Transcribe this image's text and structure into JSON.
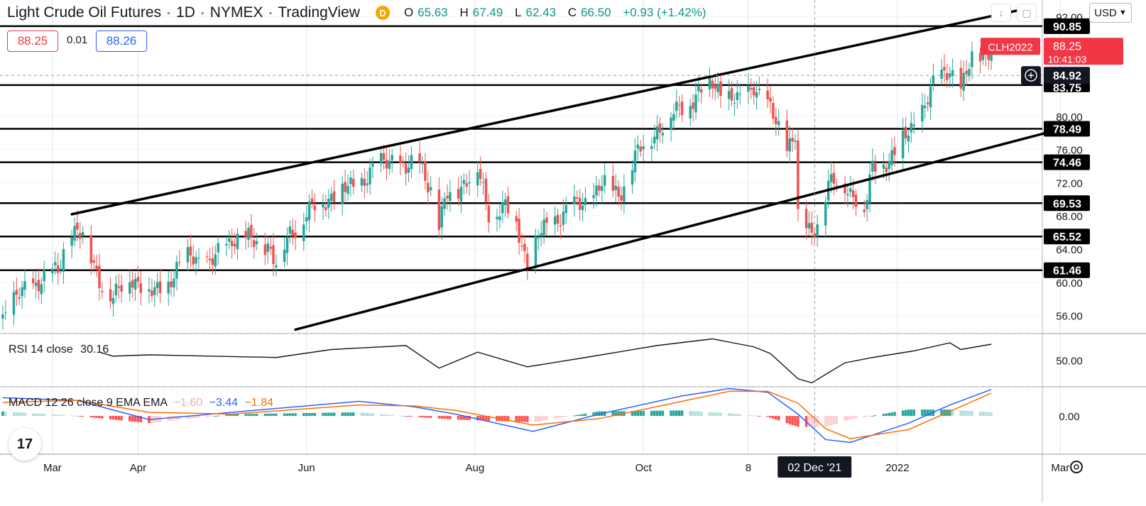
{
  "header": {
    "symbol_name": "Light Crude Oil Futures",
    "interval": "1D",
    "exchange": "NYMEX",
    "source": "TradingView",
    "badge": "D",
    "ohlc": {
      "o": "65.63",
      "h": "67.49",
      "l": "62.43",
      "c": "66.50",
      "change": "+0.93 (+1.42%)"
    },
    "o_key": "O",
    "h_key": "H",
    "l_key": "L",
    "c_key": "C"
  },
  "trade": {
    "sell": "88.25",
    "spread": "0.01",
    "buy": "88.26"
  },
  "toolbar": {
    "currency": "USD"
  },
  "rsi": {
    "label": "RSI 14 close",
    "value": "30.16",
    "tick": "50.00"
  },
  "macd": {
    "label": "MACD 12 26 close 9 EMA EMA",
    "hist": "−1.60",
    "macd": "−3.44",
    "signal": "−1.84",
    "tick": "0.00"
  },
  "price_tags": {
    "symbol": "CLH2022",
    "last": "88.25",
    "countdown": "10:41:03",
    "crosshair": "84.92"
  },
  "time_axis": {
    "crosshair_label": "02 Dec '21"
  },
  "colors": {
    "up": "#26a69a",
    "down": "#ef5350",
    "macd_line": "#2962ff",
    "signal_line": "#ff6d00",
    "last_price": "#f23645"
  },
  "chart_data": [
    {
      "type": "candlestick",
      "title": "Light Crude Oil Futures · 1D · NYMEX",
      "x_range": [
        "2021-02-10",
        "2022-03-31"
      ],
      "x_tick_labels": [
        "Mar",
        "Apr",
        "Jun",
        "Aug",
        "Oct",
        "8",
        "2022",
        "Mar"
      ],
      "y_range": [
        54,
        94
      ],
      "y_tick_labels": [
        "56.00",
        "60.00",
        "64.00",
        "68.00",
        "72.00",
        "76.00",
        "80.00",
        "92.00"
      ],
      "horizontal_levels": [
        90.85,
        83.75,
        78.49,
        74.46,
        69.53,
        65.52,
        61.46
      ],
      "level_labels": [
        "90.85",
        "78.49",
        "74.46",
        "69.53",
        "65.52",
        "61.46"
      ],
      "level_label_partial": "83.75",
      "channel_upper": [
        [
          "2021-03-08",
          68.2
        ],
        [
          "2022-02-20",
          93.2
        ]
      ],
      "channel_lower": [
        [
          "2021-05-28",
          54.3
        ],
        [
          "2022-02-25",
          78.1
        ]
      ],
      "close_anchors": [
        [
          "2021-02-11",
          56.0
        ],
        [
          "2021-02-20",
          59.5
        ],
        [
          "2021-03-03",
          61.3
        ],
        [
          "2021-03-07",
          66.5
        ],
        [
          "2021-03-12",
          65.5
        ],
        [
          "2021-03-18",
          60.5
        ],
        [
          "2021-03-23",
          57.8
        ],
        [
          "2021-03-29",
          61.0
        ],
        [
          "2021-04-05",
          58.5
        ],
        [
          "2021-04-12",
          60.0
        ],
        [
          "2021-04-20",
          63.5
        ],
        [
          "2021-04-27",
          62.0
        ],
        [
          "2021-05-05",
          65.5
        ],
        [
          "2021-05-12",
          65.0
        ],
        [
          "2021-05-18",
          64.5
        ],
        [
          "2021-05-21",
          62.0
        ],
        [
          "2021-05-26",
          66.0
        ],
        [
          "2021-06-02",
          68.5
        ],
        [
          "2021-06-10",
          70.5
        ],
        [
          "2021-06-18",
          71.5
        ],
        [
          "2021-06-25",
          73.5
        ],
        [
          "2021-07-02",
          75.0
        ],
        [
          "2021-07-07",
          73.5
        ],
        [
          "2021-07-12",
          74.5
        ],
        [
          "2021-07-16",
          71.5
        ],
        [
          "2021-07-19",
          66.5
        ],
        [
          "2021-07-22",
          70.5
        ],
        [
          "2021-07-28",
          72.0
        ],
        [
          "2021-08-02",
          73.5
        ],
        [
          "2021-08-06",
          68.5
        ],
        [
          "2021-08-12",
          69.0
        ],
        [
          "2021-08-16",
          67.0
        ],
        [
          "2021-08-20",
          62.3
        ],
        [
          "2021-08-24",
          65.5
        ],
        [
          "2021-09-02",
          68.5
        ],
        [
          "2021-09-10",
          69.5
        ],
        [
          "2021-09-16",
          72.0
        ],
        [
          "2021-09-22",
          70.5
        ],
        [
          "2021-09-28",
          75.0
        ],
        [
          "2021-10-06",
          78.5
        ],
        [
          "2021-10-13",
          80.5
        ],
        [
          "2021-10-20",
          82.5
        ],
        [
          "2021-10-26",
          84.0
        ],
        [
          "2021-10-29",
          83.0
        ],
        [
          "2021-11-05",
          81.5
        ],
        [
          "2021-11-10",
          84.0
        ],
        [
          "2021-11-16",
          80.5
        ],
        [
          "2021-11-22",
          76.5
        ],
        [
          "2021-11-25",
          78.0
        ],
        [
          "2021-11-26",
          68.2
        ],
        [
          "2021-12-01",
          65.5
        ],
        [
          "2021-12-07",
          72.0
        ],
        [
          "2021-12-13",
          71.5
        ],
        [
          "2021-12-17",
          70.5
        ],
        [
          "2021-12-20",
          68.5
        ],
        [
          "2021-12-23",
          73.5
        ],
        [
          "2021-12-31",
          75.5
        ],
        [
          "2022-01-07",
          79.0
        ],
        [
          "2022-01-14",
          83.5
        ],
        [
          "2022-01-20",
          86.0
        ],
        [
          "2022-01-24",
          83.0
        ],
        [
          "2022-01-28",
          86.8
        ],
        [
          "2022-02-04",
          88.3
        ]
      ]
    },
    {
      "type": "line",
      "title": "RSI 14 close",
      "y_range": [
        30,
        70
      ],
      "y_tick_labels": [
        "50.00"
      ],
      "guide_levels": [
        70,
        30
      ],
      "x": [
        "2021-03-18",
        "2021-03-23",
        "2021-04-05",
        "2021-05-21",
        "2021-06-10",
        "2021-07-07",
        "2021-07-19",
        "2021-08-02",
        "2021-08-20",
        "2021-09-10",
        "2021-10-06",
        "2021-10-26",
        "2021-11-10",
        "2021-11-16",
        "2021-11-26",
        "2021-12-01",
        "2021-12-13",
        "2021-12-23",
        "2022-01-07",
        "2022-01-20",
        "2022-01-24",
        "2022-02-04"
      ],
      "series": [
        {
          "values": [
            56,
            53,
            54,
            52,
            58,
            61,
            44,
            56,
            45,
            52,
            61,
            66,
            60,
            55,
            36,
            33,
            48,
            52,
            57,
            63,
            58,
            62
          ]
        }
      ]
    },
    {
      "type": "line",
      "title": "MACD 12 26 close 9 EMA EMA",
      "y_range": [
        -4.2,
        3.2
      ],
      "y_tick_labels": [
        "0.00"
      ],
      "x": [
        "2021-02-11",
        "2021-03-10",
        "2021-04-05",
        "2021-05-05",
        "2021-06-20",
        "2021-07-10",
        "2021-07-25",
        "2021-08-22",
        "2021-09-15",
        "2021-10-15",
        "2021-11-01",
        "2021-11-15",
        "2021-11-26",
        "2021-12-06",
        "2021-12-15",
        "2022-01-05",
        "2022-01-20",
        "2022-02-04"
      ],
      "series": [
        {
          "name": "MACD",
          "values": [
            2.0,
            1.7,
            -0.4,
            0.4,
            1.6,
            1.0,
            0.2,
            -1.7,
            0.2,
            2.2,
            3.0,
            2.6,
            0.2,
            -2.6,
            -2.9,
            -0.8,
            1.2,
            2.9
          ]
        },
        {
          "name": "Signal",
          "values": [
            1.5,
            1.7,
            0.4,
            0.2,
            1.2,
            1.1,
            0.6,
            -1.0,
            -0.3,
            1.6,
            2.7,
            2.7,
            1.4,
            -1.4,
            -2.5,
            -1.5,
            0.5,
            2.5
          ]
        }
      ]
    }
  ]
}
